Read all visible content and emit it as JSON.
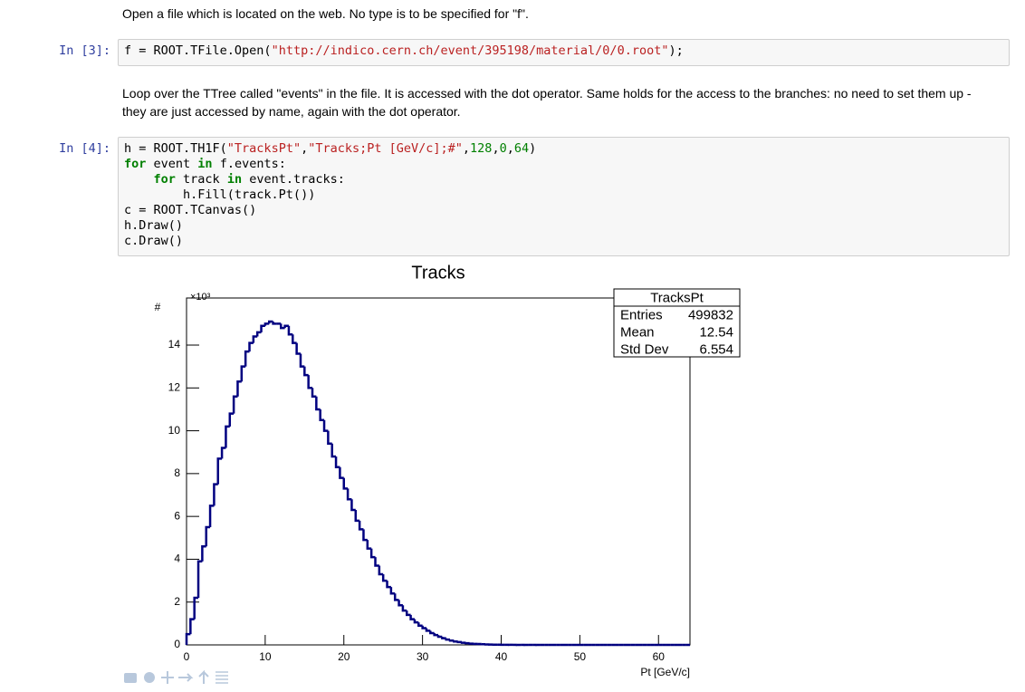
{
  "cells": [
    {
      "text": "Open a file which is located on the web. No type is to be specified for \"f\"."
    },
    {
      "prompt": "In [3]:",
      "code": [
        [
          "f = ROOT.TFile.Open(",
          {
            "text": "\"http://indico.cern.ch/event/395198/material/0/0.root\"",
            "color": "#ba2121"
          },
          ");"
        ]
      ]
    },
    {
      "text": "Loop over the TTree called \"events\" in the file. It is accessed with the dot operator. Same holds for the access to the branches: no need to set them up - they are just accessed by name, again with the dot operator."
    },
    {
      "prompt": "In [4]:",
      "code": [
        [
          "h = ROOT.TH1F(",
          {
            "text": "\"TracksPt\"",
            "color": "#ba2121"
          },
          ",",
          {
            "text": "\"Tracks;Pt [GeV/c];#\"",
            "color": "#ba2121"
          },
          ",",
          {
            "text": "128",
            "color": "#008000"
          },
          ",",
          {
            "text": "0",
            "color": "#008000"
          },
          ",",
          {
            "text": "64",
            "color": "#008000"
          },
          ")"
        ],
        [
          {
            "text": "for",
            "color": "#008000",
            "bold": true
          },
          " event ",
          {
            "text": "in",
            "color": "#008000",
            "bold": true
          },
          " f.events:"
        ],
        [
          "    ",
          {
            "text": "for",
            "color": "#008000",
            "bold": true
          },
          " track ",
          {
            "text": "in",
            "color": "#008000",
            "bold": true
          },
          " event.tracks:"
        ],
        [
          "        h.Fill(track.Pt())"
        ],
        [
          "c = ROOT.TCanvas()"
        ],
        [
          "h.Draw()"
        ],
        [
          "c.Draw()"
        ]
      ]
    }
  ],
  "chart_data": {
    "type": "histogram",
    "title": "Tracks",
    "x_label": "Pt [GeV/c]",
    "y_label": "#",
    "y_multiplier": "×10³",
    "color": "#000080",
    "bins": [
      0,
      0.5,
      1,
      1.5,
      2,
      2.5,
      3,
      3.5,
      4,
      4.5,
      5,
      5.5,
      6,
      6.5,
      7,
      7.5,
      8,
      8.5,
      9,
      9.5,
      10,
      10.5,
      11,
      11.5,
      12,
      12.5,
      13,
      13.5,
      14,
      14.5,
      15,
      15.5,
      16,
      16.5,
      17,
      17.5,
      18,
      18.5,
      19,
      19.5,
      20,
      20.5,
      21,
      21.5,
      22,
      22.5,
      23,
      23.5,
      24,
      24.5,
      25,
      25.5,
      26,
      26.5,
      27,
      27.5,
      28,
      28.5,
      29,
      29.5,
      30,
      30.5,
      31,
      31.5,
      32,
      32.5,
      33,
      33.5,
      34,
      34.5,
      35,
      35.5,
      36,
      36.5,
      37,
      37.5,
      38,
      38.5,
      39,
      39.5,
      40,
      40.5,
      41,
      41.5,
      42,
      42.5,
      43,
      43.5,
      44,
      44.5,
      45,
      45.5,
      46,
      46.5,
      47,
      47.5,
      48,
      48.5,
      49,
      49.5,
      50,
      50.5,
      51,
      51.5,
      52,
      52.5,
      53,
      53.5,
      54,
      54.5,
      55,
      55.5,
      56,
      56.5,
      57,
      57.5,
      58,
      58.5,
      59,
      59.5,
      60,
      60.5,
      61,
      61.5,
      62,
      62.5,
      63,
      63.5,
      64
    ],
    "values": [
      0.5,
      1.2,
      2.2,
      3.9,
      4.6,
      5.5,
      6.5,
      7.5,
      8.7,
      9.2,
      10.2,
      10.8,
      11.6,
      12.3,
      13.0,
      13.7,
      14.1,
      14.4,
      14.6,
      14.9,
      15.0,
      15.1,
      15.0,
      15.0,
      14.8,
      14.9,
      14.5,
      14.1,
      13.6,
      13.0,
      12.6,
      12.0,
      11.6,
      11.0,
      10.5,
      10.0,
      9.4,
      8.8,
      8.3,
      7.8,
      7.3,
      6.8,
      6.3,
      5.8,
      5.4,
      4.9,
      4.5,
      4.1,
      3.7,
      3.3,
      3.0,
      2.7,
      2.4,
      2.1,
      1.85,
      1.6,
      1.4,
      1.2,
      1.05,
      0.9,
      0.78,
      0.66,
      0.55,
      0.46,
      0.38,
      0.31,
      0.25,
      0.2,
      0.16,
      0.13,
      0.1,
      0.08,
      0.06,
      0.05,
      0.04,
      0.03,
      0.02,
      0.015,
      0.01,
      0.01,
      0.005,
      0.005,
      0.003,
      0.003,
      0.002,
      0.002,
      0.001,
      0.001,
      0.001,
      0,
      0,
      0,
      0,
      0,
      0,
      0,
      0,
      0,
      0,
      0,
      0,
      0,
      0,
      0,
      0,
      0,
      0,
      0,
      0,
      0,
      0,
      0,
      0,
      0,
      0,
      0,
      0,
      0,
      0,
      0,
      0,
      0,
      0,
      0,
      0,
      0,
      0,
      0
    ],
    "xlim": [
      0,
      64
    ],
    "ylim": [
      0,
      16.2
    ],
    "xticks": [
      0,
      10,
      20,
      30,
      40,
      50,
      60
    ],
    "yticks": [
      0,
      2,
      4,
      6,
      8,
      10,
      12,
      14
    ],
    "stats_box": {
      "title": "TracksPt",
      "rows": [
        {
          "label": "Entries",
          "value": 499832
        },
        {
          "label": "Mean",
          "value": 12.54
        },
        {
          "label": "Std Dev",
          "value": 6.554
        }
      ]
    }
  }
}
